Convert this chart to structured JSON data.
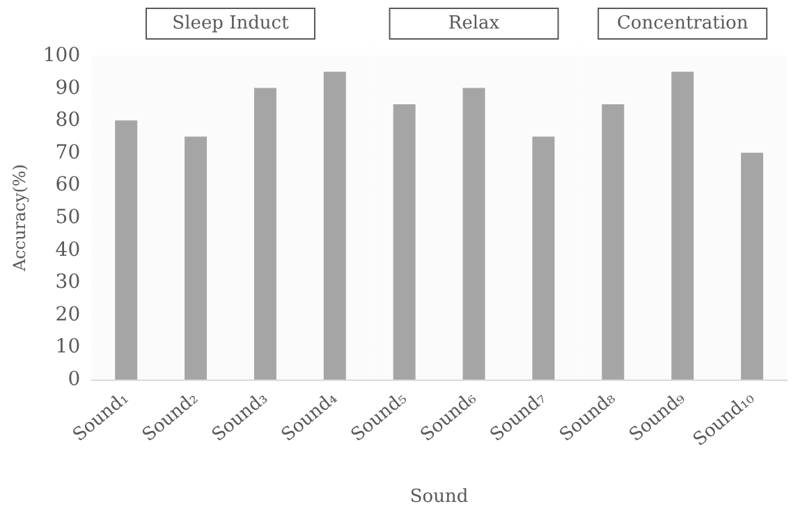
{
  "chart_data": {
    "type": "bar",
    "xlabel": "Sound",
    "ylabel": "Accuracy(%)",
    "categories": [
      "Sound₁",
      "Sound₂",
      "Sound₃",
      "Sound₄",
      "Sound₅",
      "Sound₆",
      "Sound₇",
      "Sound₈",
      "Sound₉",
      "Sound₁₀"
    ],
    "values": [
      80,
      75,
      90,
      95,
      85,
      90,
      75,
      85,
      95,
      70
    ],
    "color": "#a5a5a5",
    "ylim": [
      0,
      100
    ],
    "yticks": [
      0,
      10,
      20,
      30,
      40,
      50,
      60,
      70,
      80,
      90,
      100
    ],
    "grid": "y",
    "bands": [
      {
        "axis": "x",
        "from": "Sound₁",
        "to": "Sound₄",
        "label": "Sleep Induct",
        "color": "#fbfbfb"
      },
      {
        "axis": "x",
        "from": "Sound₅",
        "to": "Sound₇",
        "label": "Relax",
        "color": "#fbfbfb"
      },
      {
        "axis": "x",
        "from": "Sound₈",
        "to": "Sound₁₀",
        "label": "Concentration",
        "color": "#fbfbfb"
      }
    ]
  }
}
